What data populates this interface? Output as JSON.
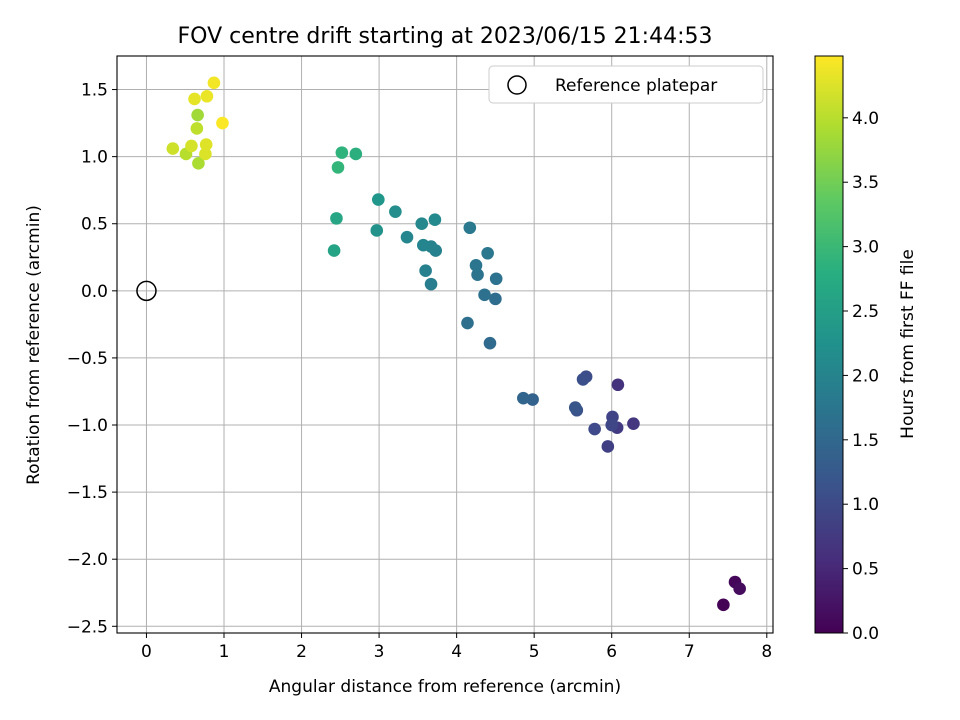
{
  "chart_data": {
    "type": "scatter",
    "title": "FOV centre drift starting at 2023/06/15 21:44:53",
    "xlabel": "Angular distance from reference (arcmin)",
    "ylabel": "Rotation from reference (arcmin)",
    "xlim": [
      -0.38,
      8.08
    ],
    "ylim": [
      -2.55,
      1.75
    ],
    "x_ticks": [
      0,
      1,
      2,
      3,
      4,
      5,
      6,
      7,
      8
    ],
    "x_tick_labels": [
      "0",
      "1",
      "2",
      "3",
      "4",
      "5",
      "6",
      "7",
      "8"
    ],
    "y_ticks": [
      1.5,
      1.0,
      0.5,
      0.0,
      -0.5,
      -1.0,
      -1.5,
      -2.0,
      -2.5
    ],
    "y_tick_labels": [
      "1.5",
      "1.0",
      "0.5",
      "0.0",
      "−0.5",
      "−1.0",
      "−1.5",
      "−2.0",
      "−2.5"
    ],
    "grid": true,
    "legend": {
      "position": "upper-right",
      "label": "Reference platepar"
    },
    "reference_point": {
      "x": 0.0,
      "y": 0.0
    },
    "colorbar": {
      "label": "Hours from first FF file",
      "colormap": "viridis",
      "range": [
        0.0,
        4.48
      ],
      "ticks": [
        0.0,
        0.5,
        1.0,
        1.5,
        2.0,
        2.5,
        3.0,
        3.5,
        4.0
      ],
      "tick_labels": [
        "0.0",
        "0.5",
        "1.0",
        "1.5",
        "2.0",
        "2.5",
        "3.0",
        "3.5",
        "4.0"
      ]
    },
    "points": [
      {
        "x": 7.44,
        "y": -2.34,
        "h": 0.02
      },
      {
        "x": 7.59,
        "y": -2.17,
        "h": 0.08
      },
      {
        "x": 7.65,
        "y": -2.22,
        "h": 0.14
      },
      {
        "x": 6.08,
        "y": -0.7,
        "h": 0.65
      },
      {
        "x": 6.28,
        "y": -0.99,
        "h": 0.72
      },
      {
        "x": 6.07,
        "y": -1.02,
        "h": 0.78
      },
      {
        "x": 5.95,
        "y": -1.16,
        "h": 0.84
      },
      {
        "x": 6.01,
        "y": -0.94,
        "h": 0.9
      },
      {
        "x": 6.0,
        "y": -1.0,
        "h": 0.95
      },
      {
        "x": 5.78,
        "y": -1.03,
        "h": 1.0
      },
      {
        "x": 5.67,
        "y": -0.64,
        "h": 1.05
      },
      {
        "x": 5.63,
        "y": -0.66,
        "h": 1.1
      },
      {
        "x": 5.55,
        "y": -0.89,
        "h": 1.15
      },
      {
        "x": 5.53,
        "y": -0.87,
        "h": 1.2
      },
      {
        "x": 4.98,
        "y": -0.81,
        "h": 1.4
      },
      {
        "x": 4.86,
        "y": -0.8,
        "h": 1.45
      },
      {
        "x": 4.43,
        "y": -0.39,
        "h": 1.55
      },
      {
        "x": 4.5,
        "y": -0.06,
        "h": 1.58
      },
      {
        "x": 4.14,
        "y": -0.24,
        "h": 1.62
      },
      {
        "x": 4.36,
        "y": -0.03,
        "h": 1.66
      },
      {
        "x": 4.51,
        "y": 0.09,
        "h": 1.69
      },
      {
        "x": 4.27,
        "y": 0.12,
        "h": 1.72
      },
      {
        "x": 4.25,
        "y": 0.19,
        "h": 1.75
      },
      {
        "x": 4.4,
        "y": 0.28,
        "h": 1.78
      },
      {
        "x": 4.17,
        "y": 0.47,
        "h": 1.82
      },
      {
        "x": 3.67,
        "y": 0.05,
        "h": 1.92
      },
      {
        "x": 3.6,
        "y": 0.15,
        "h": 1.95
      },
      {
        "x": 3.73,
        "y": 0.3,
        "h": 1.98
      },
      {
        "x": 3.67,
        "y": 0.33,
        "h": 2.01
      },
      {
        "x": 3.57,
        "y": 0.34,
        "h": 2.04
      },
      {
        "x": 3.36,
        "y": 0.4,
        "h": 2.07
      },
      {
        "x": 3.55,
        "y": 0.5,
        "h": 2.1
      },
      {
        "x": 3.72,
        "y": 0.53,
        "h": 2.13
      },
      {
        "x": 3.21,
        "y": 0.59,
        "h": 2.2
      },
      {
        "x": 2.97,
        "y": 0.45,
        "h": 2.28
      },
      {
        "x": 2.99,
        "y": 0.68,
        "h": 2.34
      },
      {
        "x": 2.42,
        "y": 0.3,
        "h": 2.6
      },
      {
        "x": 2.45,
        "y": 0.54,
        "h": 2.65
      },
      {
        "x": 2.7,
        "y": 1.02,
        "h": 2.8
      },
      {
        "x": 2.52,
        "y": 1.03,
        "h": 2.88
      },
      {
        "x": 2.47,
        "y": 0.92,
        "h": 2.95
      },
      {
        "x": 0.66,
        "y": 1.31,
        "h": 3.85
      },
      {
        "x": 0.67,
        "y": 0.95,
        "h": 3.92
      },
      {
        "x": 0.51,
        "y": 1.02,
        "h": 4.0
      },
      {
        "x": 0.65,
        "y": 1.21,
        "h": 4.05
      },
      {
        "x": 0.34,
        "y": 1.06,
        "h": 4.15
      },
      {
        "x": 0.58,
        "y": 1.08,
        "h": 4.2
      },
      {
        "x": 0.76,
        "y": 1.02,
        "h": 4.24
      },
      {
        "x": 0.77,
        "y": 1.09,
        "h": 4.27
      },
      {
        "x": 0.62,
        "y": 1.43,
        "h": 4.32
      },
      {
        "x": 0.78,
        "y": 1.45,
        "h": 4.36
      },
      {
        "x": 0.87,
        "y": 1.55,
        "h": 4.41
      },
      {
        "x": 0.98,
        "y": 1.25,
        "h": 4.46
      }
    ]
  }
}
